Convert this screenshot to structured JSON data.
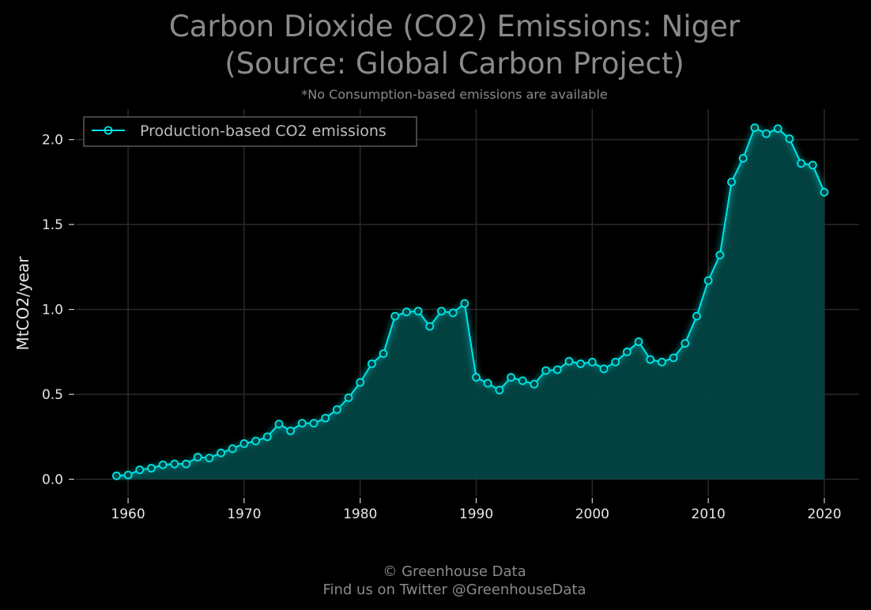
{
  "chart_data": {
    "type": "area",
    "title_lines": [
      "Carbon Dioxide (CO2) Emissions: Niger",
      "(Source: Global Carbon Project)"
    ],
    "subtitle": "*No Consumption-based emissions are available",
    "xlabel": "",
    "ylabel": "MtCO2/year",
    "xlim": [
      1955.5,
      2023
    ],
    "ylim": [
      -0.1,
      2.18
    ],
    "x_ticks": [
      1960,
      1970,
      1980,
      1990,
      2000,
      2010,
      2020
    ],
    "x_tick_labels": [
      "1960",
      "1970",
      "1980",
      "1990",
      "2000",
      "2010",
      "2020"
    ],
    "y_ticks": [
      0.0,
      0.5,
      1.0,
      1.5,
      2.0
    ],
    "y_tick_labels": [
      "0.0",
      "0.5",
      "1.0",
      "1.5",
      "2.0"
    ],
    "grid": true,
    "legend_position": "top-left",
    "colors": {
      "background": "#000000",
      "line": "#00e5e5",
      "fill": "#034545",
      "grid": "#2a2a2a",
      "text": "#e6e6e6",
      "muted": "#8a8a8a"
    },
    "series": [
      {
        "name": "Production-based CO2 emissions",
        "x": [
          1959,
          1960,
          1961,
          1962,
          1963,
          1964,
          1965,
          1966,
          1967,
          1968,
          1969,
          1970,
          1971,
          1972,
          1973,
          1974,
          1975,
          1976,
          1977,
          1978,
          1979,
          1980,
          1981,
          1982,
          1983,
          1984,
          1985,
          1986,
          1987,
          1988,
          1989,
          1990,
          1991,
          1992,
          1993,
          1994,
          1995,
          1996,
          1997,
          1998,
          1999,
          2000,
          2001,
          2002,
          2003,
          2004,
          2005,
          2006,
          2007,
          2008,
          2009,
          2010,
          2011,
          2012,
          2013,
          2014,
          2015,
          2016,
          2017,
          2018,
          2019,
          2020
        ],
        "values": [
          0.02,
          0.025,
          0.055,
          0.065,
          0.085,
          0.09,
          0.09,
          0.13,
          0.125,
          0.155,
          0.18,
          0.21,
          0.225,
          0.25,
          0.325,
          0.285,
          0.33,
          0.33,
          0.36,
          0.41,
          0.48,
          0.57,
          0.68,
          0.74,
          0.96,
          0.985,
          0.99,
          0.9,
          0.99,
          0.98,
          1.035,
          0.6,
          0.565,
          0.525,
          0.6,
          0.58,
          0.56,
          0.64,
          0.645,
          0.695,
          0.68,
          0.69,
          0.65,
          0.69,
          0.75,
          0.81,
          0.705,
          0.69,
          0.715,
          0.8,
          0.96,
          1.17,
          1.32,
          1.75,
          1.89,
          2.07,
          2.035,
          2.065,
          2.005,
          1.86,
          1.85,
          1.69
        ]
      }
    ]
  },
  "footer": {
    "line1": "© Greenhouse Data",
    "line2": "Find us on Twitter @GreenhouseData"
  }
}
